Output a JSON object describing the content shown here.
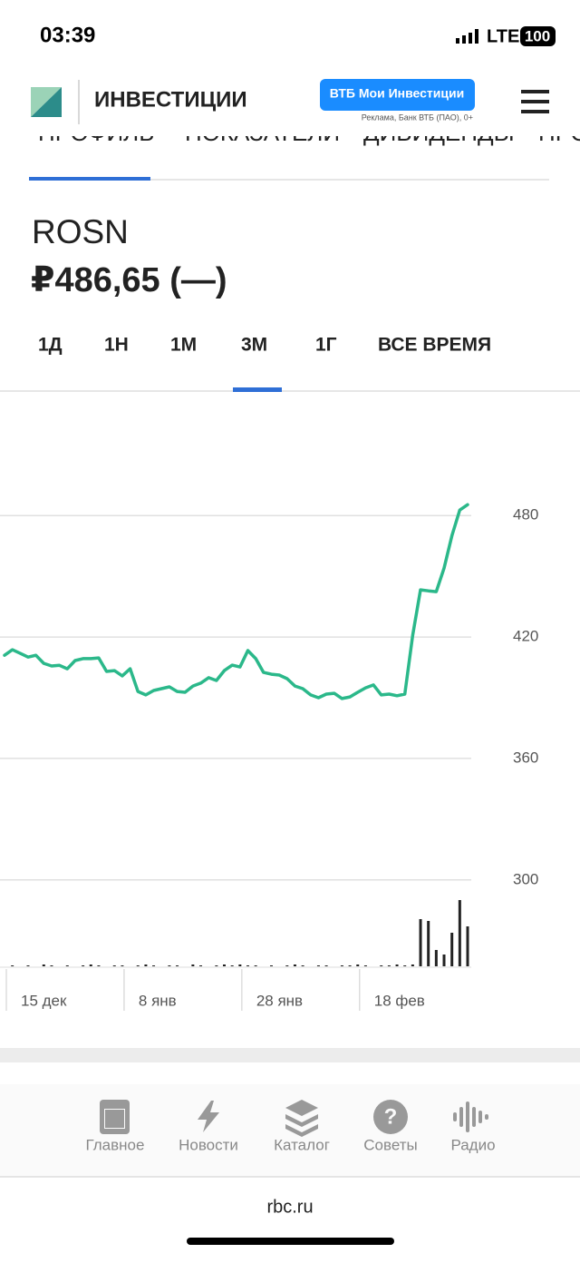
{
  "status": {
    "time": "03:39",
    "network": "LTE",
    "battery": "100"
  },
  "header": {
    "brand": "ИНВЕСТИЦИИ",
    "button": "ВТБ Мои Инвестиции",
    "ad_note": "Реклама, Банк ВТБ (ПАО), 0+"
  },
  "tabs": [
    "ПРОФИЛЬ",
    "ПОКАЗАТЕЛИ",
    "ДИВИДЕНДЫ",
    "ПРО"
  ],
  "ticker": "ROSN",
  "price": "₽486,65 (—)",
  "periods": [
    "1Д",
    "1Н",
    "1М",
    "3М",
    "1Г",
    "ВСЕ ВРЕМЯ"
  ],
  "chart_data": {
    "type": "line",
    "series": [
      {
        "color": "#2bb88a",
        "values": [
          411.0,
          413.7,
          411.9,
          410.1,
          411.0,
          407.0,
          405.7,
          406.0,
          404.3,
          408.4,
          409.3,
          409.3,
          409.7,
          403.0,
          403.4,
          400.8,
          404.3,
          393.1,
          391.4,
          393.6,
          394.5,
          395.4,
          393.1,
          392.7,
          395.8,
          397.2,
          399.9,
          398.5,
          403.4,
          406.1,
          405.2,
          413.3,
          409.3,
          402.5,
          401.6,
          401.2,
          399.4,
          395.8,
          394.5,
          391.4,
          390.0,
          391.8,
          392.2,
          389.6,
          390.4,
          392.7,
          394.9,
          396.3,
          391.4,
          391.8,
          391.0,
          391.8,
          420.9,
          443.3,
          442.8,
          442.4,
          454.0,
          470.1,
          482.7,
          485.4
        ]
      }
    ],
    "volume": {
      "color": "#222222",
      "values": [
        0,
        1,
        0,
        1,
        0,
        2,
        1,
        0,
        1,
        0,
        1,
        2,
        1,
        0,
        1,
        1,
        0,
        1,
        2,
        1,
        0,
        1,
        1,
        0,
        2,
        1,
        0,
        1,
        2,
        1,
        2,
        1,
        1,
        0,
        1,
        0,
        1,
        2,
        1,
        0,
        1,
        1,
        0,
        1,
        1,
        2,
        1,
        0,
        1,
        1,
        2,
        1,
        2,
        52,
        50,
        18,
        13,
        37,
        73,
        44
      ]
    },
    "xlim": [
      0,
      59
    ],
    "xticks": [
      {
        "value": 0,
        "label": "15 дек"
      },
      {
        "value": 15,
        "label": "8 янв"
      },
      {
        "value": 30,
        "label": "28 янв"
      },
      {
        "value": 45,
        "label": "18 фев"
      }
    ],
    "ylim": [
      260,
      520
    ],
    "yticks": [
      300,
      360,
      420,
      480
    ],
    "grid": true
  },
  "nav": [
    "Главное",
    "Новости",
    "Каталог",
    "Советы",
    "Радио"
  ],
  "footer": "rbc.ru"
}
